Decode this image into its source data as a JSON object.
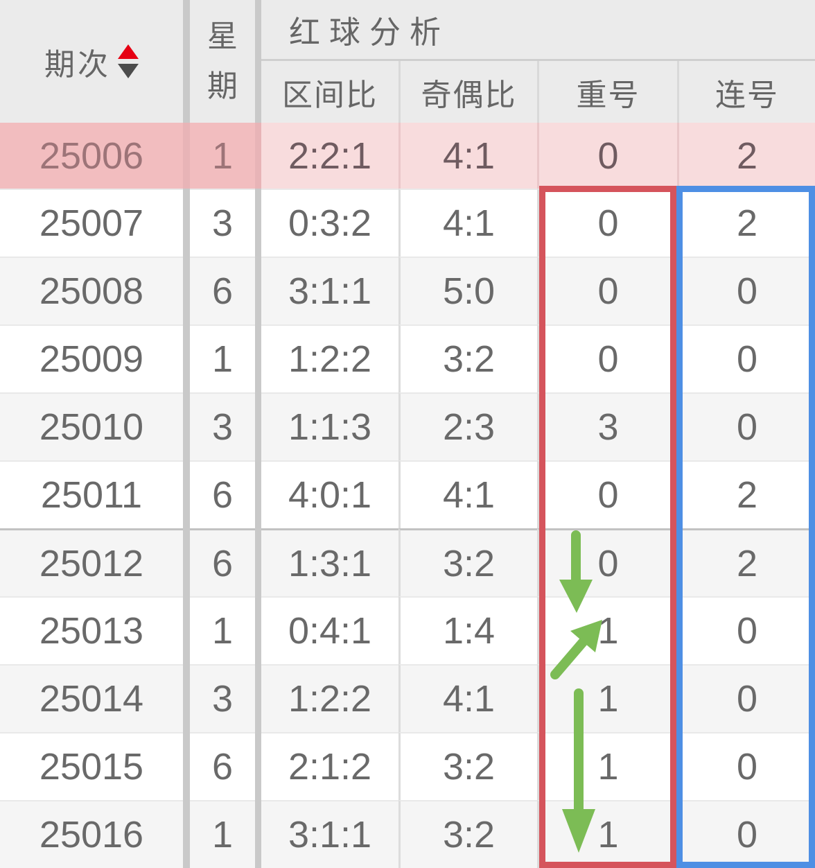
{
  "table": {
    "header": {
      "period_label": "期次",
      "sort_icon": "up-down-triangles",
      "weekday_line1": "星",
      "weekday_line2": "期",
      "group_label": "红球分析",
      "sub_headers": [
        "区间比",
        "奇偶比",
        "重号",
        "连号"
      ]
    },
    "highlight_row": {
      "period": "25006",
      "weekday": "1",
      "interval_ratio": "2:2:1",
      "odd_even_ratio": "4:1",
      "repeat_count": "0",
      "consecutive_count": "2"
    },
    "rows": [
      {
        "period": "25007",
        "weekday": "3",
        "interval_ratio": "0:3:2",
        "odd_even_ratio": "4:1",
        "repeat_count": "0",
        "consecutive_count": "2"
      },
      {
        "period": "25008",
        "weekday": "6",
        "interval_ratio": "3:1:1",
        "odd_even_ratio": "5:0",
        "repeat_count": "0",
        "consecutive_count": "0"
      },
      {
        "period": "25009",
        "weekday": "1",
        "interval_ratio": "1:2:2",
        "odd_even_ratio": "3:2",
        "repeat_count": "0",
        "consecutive_count": "0"
      },
      {
        "period": "25010",
        "weekday": "3",
        "interval_ratio": "1:1:3",
        "odd_even_ratio": "2:3",
        "repeat_count": "3",
        "consecutive_count": "0"
      },
      {
        "period": "25011",
        "weekday": "6",
        "interval_ratio": "4:0:1",
        "odd_even_ratio": "4:1",
        "repeat_count": "0",
        "consecutive_count": "2"
      },
      {
        "period": "25012",
        "weekday": "6",
        "interval_ratio": "1:3:1",
        "odd_even_ratio": "3:2",
        "repeat_count": "0",
        "consecutive_count": "2",
        "section_start": true
      },
      {
        "period": "25013",
        "weekday": "1",
        "interval_ratio": "0:4:1",
        "odd_even_ratio": "1:4",
        "repeat_count": "1",
        "consecutive_count": "0"
      },
      {
        "period": "25014",
        "weekday": "3",
        "interval_ratio": "1:2:2",
        "odd_even_ratio": "4:1",
        "repeat_count": "1",
        "consecutive_count": "0"
      },
      {
        "period": "25015",
        "weekday": "6",
        "interval_ratio": "2:1:2",
        "odd_even_ratio": "3:2",
        "repeat_count": "1",
        "consecutive_count": "0"
      },
      {
        "period": "25016",
        "weekday": "1",
        "interval_ratio": "3:1:1",
        "odd_even_ratio": "3:2",
        "repeat_count": "1",
        "consecutive_count": "0"
      }
    ]
  },
  "annotations": {
    "repeat_column_box_color": "#d5545c",
    "consecutive_column_box_color": "#4e8fe4",
    "arrow_color": "#7cbc55",
    "arrows": [
      "short-down-arrow-at-25012",
      "up-right-arrow-at-25013",
      "long-down-arrow-25014-to-25016"
    ]
  },
  "colors": {
    "header_bg": "#ebebeb",
    "alt_row_bg": "#f5f5f5",
    "column_divider": "#c9c9c9",
    "highlight_row_bg_dark": "#f2bdbf",
    "highlight_row_bg_light": "#f8dcdd",
    "sort_up_color": "#e60013",
    "sort_down_color": "#4c4c4c"
  }
}
